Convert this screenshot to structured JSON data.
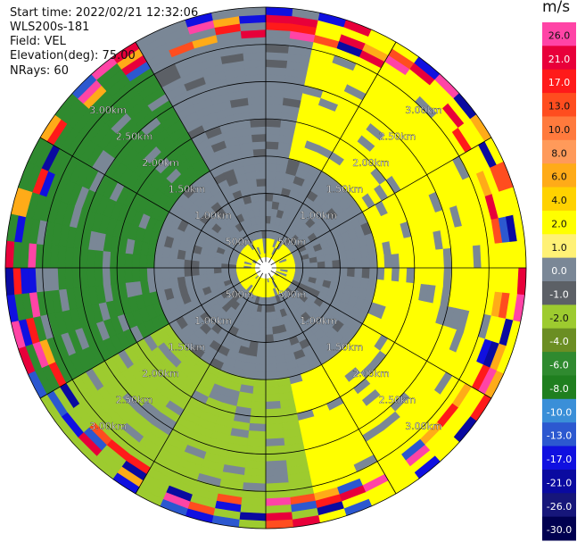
{
  "info": {
    "start_time": "Start time: 2022/02/21 12:32:06",
    "instrument": "WLS200s-181",
    "field": "Field: VEL",
    "elevation": "Elevation(deg): 75.00",
    "nrays": "NRays: 60"
  },
  "chart_data": {
    "type": "heatmap",
    "projection": "polar PPI",
    "title": "",
    "range_rings_km": [
      0.5,
      1.0,
      1.5,
      2.0,
      2.5,
      3.0
    ],
    "ring_labels": [
      "500m",
      "1.00km",
      "1.50km",
      "2.00km",
      "2.50km",
      "3.00km"
    ],
    "max_range_km": 3.5,
    "nrays": 60,
    "spokes_deg": [
      0,
      30,
      60,
      90,
      120,
      150,
      180,
      210,
      240,
      270,
      300,
      330
    ],
    "colorbar": {
      "unit": "m/s",
      "tick_labels": [
        "26.0",
        "21.0",
        "17.0",
        "13.0",
        "10.0",
        "8.0",
        "6.0",
        "4.0",
        "2.0",
        "1.0",
        "0.0",
        "-1.0",
        "-2.0",
        "-4.0",
        "-6.0",
        "-8.0",
        "-10.0",
        "-13.0",
        "-17.0",
        "-21.0",
        "-26.0",
        "-30.0"
      ],
      "colors": [
        "#ff44a6",
        "#e8003a",
        "#ff1a1a",
        "#ff4d1f",
        "#ff7a3d",
        "#ff9a5a",
        "#ffab18",
        "#ffd200",
        "#ffff00",
        "#fff176",
        "#7a8796",
        "#5c6066",
        "#9dcb2f",
        "#6b8e23",
        "#2f8a2f",
        "#1f7f1f",
        "#3a8fd8",
        "#2c58d0",
        "#1010e0",
        "#0a0aa0",
        "#16167a",
        "#000050"
      ]
    },
    "azimuth_segments_deg": [
      {
        "from": 10,
        "to": 170,
        "value": 2.0
      },
      {
        "from": 170,
        "to": 240,
        "value": -2.0
      },
      {
        "from": 240,
        "to": 330,
        "value": -6.0
      },
      {
        "from": 330,
        "to": 370,
        "value": 0.0
      }
    ],
    "range_profile_km": [
      {
        "from": 0.0,
        "to": 0.45,
        "value": 2.0
      },
      {
        "from": 0.45,
        "to": 1.55,
        "value": 0.0
      },
      {
        "from": 1.55,
        "to": 3.5,
        "value": "azimuth_dependent"
      }
    ]
  }
}
